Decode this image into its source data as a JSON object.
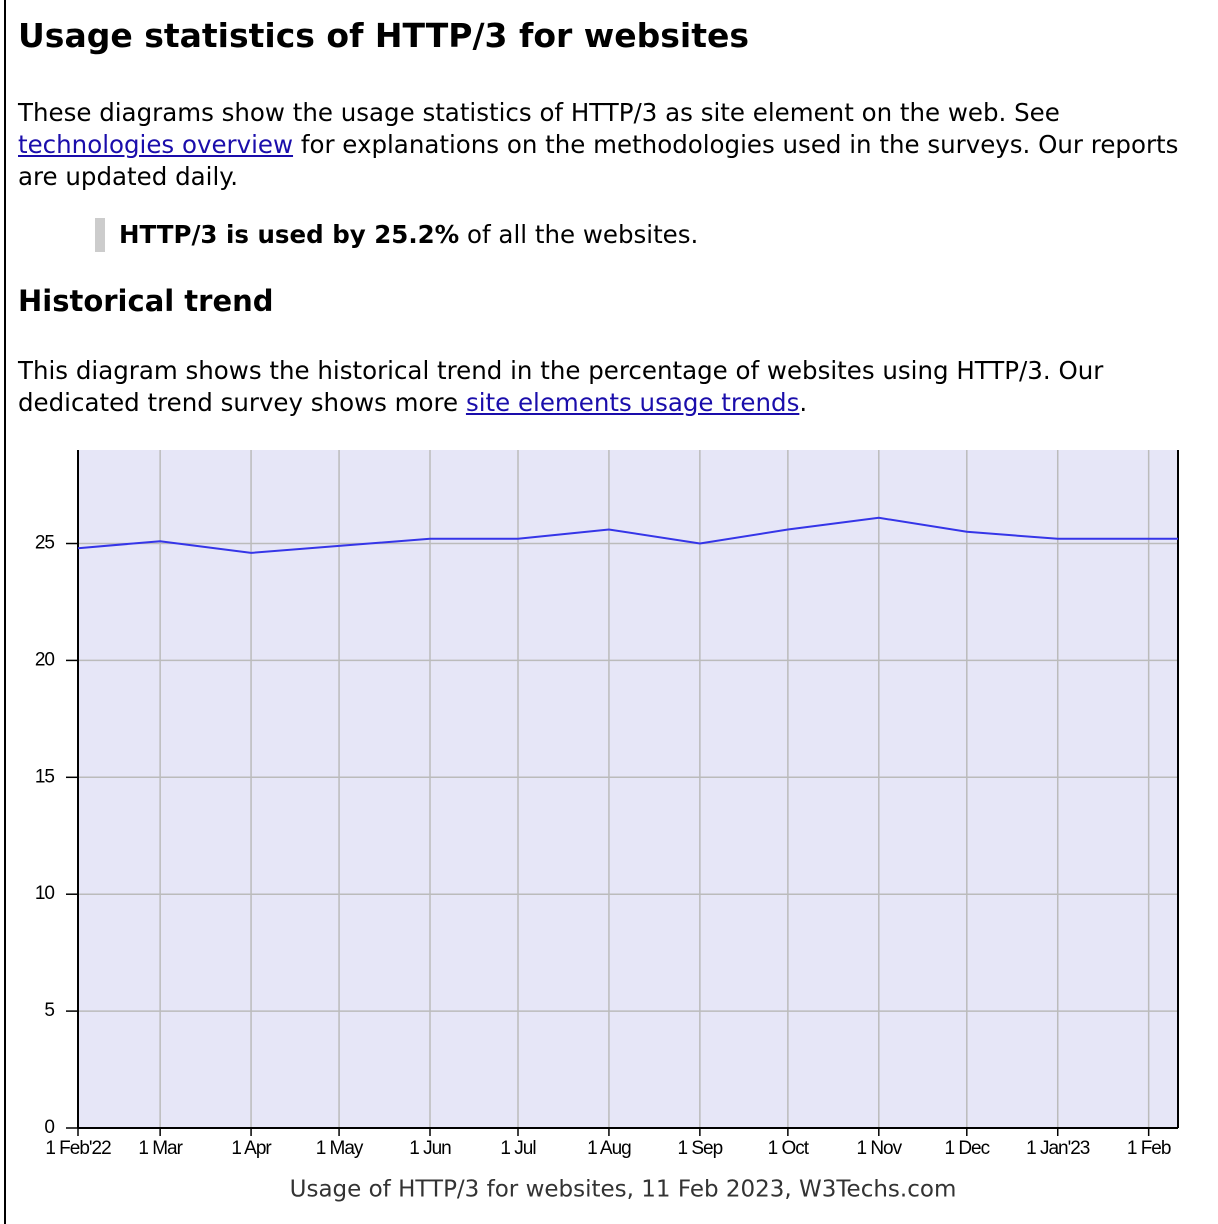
{
  "header": {
    "title": "Usage statistics of HTTP/3 for websites"
  },
  "intro": {
    "text1": "These diagrams show the usage statistics of HTTP/3 as site element on the web. See",
    "link": "technologies overview",
    "text2": "for explanations on the methodologies used in the surveys. Our reports are updated daily."
  },
  "callout": {
    "bold": "HTTP/3 is used by 25.2%",
    "text": "of all the websites."
  },
  "trend": {
    "heading": "Historical trend",
    "text1": "This diagram shows the historical trend in the percentage of websites using HTTP/3. Our dedicated trend survey shows more",
    "link": "site elements usage trends",
    "text2": "."
  },
  "chart_data": {
    "type": "line",
    "caption": "Usage of HTTP/3 for websites, 11 Feb 2023, W3Techs.com",
    "x": [
      "2022-02-01",
      "2022-03-01",
      "2022-04-01",
      "2022-05-01",
      "2022-06-01",
      "2022-07-01",
      "2022-08-01",
      "2022-09-01",
      "2022-10-01",
      "2022-11-01",
      "2022-12-01",
      "2023-01-01",
      "2023-02-01",
      "2023-02-11"
    ],
    "series": [
      {
        "color": "#3535e8",
        "values": [
          24.8,
          25.1,
          24.6,
          24.9,
          25.2,
          25.2,
          25.6,
          25.0,
          25.6,
          26.1,
          25.5,
          25.2,
          25.2,
          25.2
        ]
      }
    ],
    "xlim": [
      "2022-02-01",
      "2023-02-11"
    ],
    "xticks": [
      {
        "value": "2022-02-01",
        "label": "1 Feb'22"
      },
      {
        "value": "2022-03-01",
        "label": "1 Mar"
      },
      {
        "value": "2022-04-01",
        "label": "1 Apr"
      },
      {
        "value": "2022-05-01",
        "label": "1 May"
      },
      {
        "value": "2022-06-01",
        "label": "1 Jun"
      },
      {
        "value": "2022-07-01",
        "label": "1 Jul"
      },
      {
        "value": "2022-08-01",
        "label": "1 Aug"
      },
      {
        "value": "2022-09-01",
        "label": "1 Sep"
      },
      {
        "value": "2022-10-01",
        "label": "1 Oct"
      },
      {
        "value": "2022-11-01",
        "label": "1 Nov"
      },
      {
        "value": "2022-12-01",
        "label": "1 Dec"
      },
      {
        "value": "2023-01-01",
        "label": "1 Jan'23"
      },
      {
        "value": "2023-02-01",
        "label": "1 Feb"
      }
    ],
    "ylim": [
      0,
      29
    ],
    "yticks": [
      0,
      5,
      10,
      15,
      20,
      25
    ],
    "grid": true,
    "background": "#e6e6f7"
  }
}
